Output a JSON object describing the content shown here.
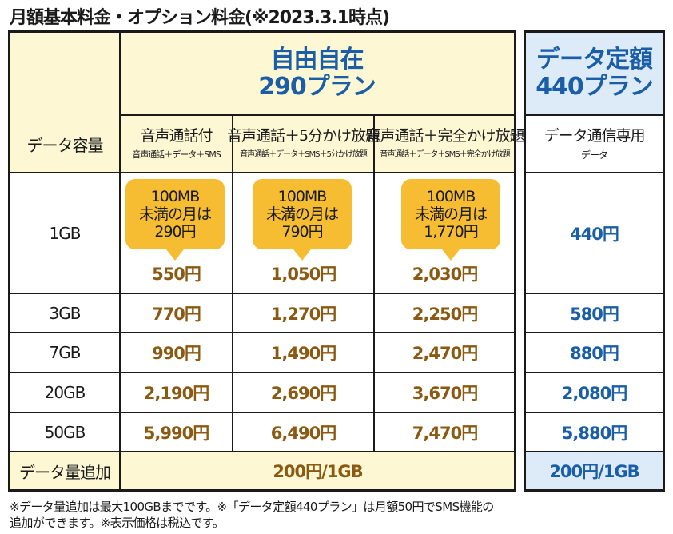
{
  "title": "月額基本料金・オプション料金(※2023.3.1時点)",
  "plans": {
    "jiyu": {
      "line1": "自由自在",
      "line2": "290プラン"
    },
    "data": {
      "line1": "データ定額",
      "line2": "440プラン"
    }
  },
  "header": {
    "data_capacity": "データ容量",
    "columns": [
      {
        "main": "音声通話付",
        "sub": "音声通話＋データ＋SMS"
      },
      {
        "main": "音声通話＋5分かけ放題",
        "sub": "音声通話＋データ＋SMS＋5分かけ放題"
      },
      {
        "main": "音声通話＋完全かけ放題",
        "sub": "音声通話＋データ＋SMS＋完全かけ放題"
      },
      {
        "main": "データ通信専用",
        "sub": "データ"
      }
    ]
  },
  "bubbles": [
    {
      "l1": "100MB",
      "l2": "未満の月は",
      "l3": "290円"
    },
    {
      "l1": "100MB",
      "l2": "未満の月は",
      "l3": "790円"
    },
    {
      "l1": "100MB",
      "l2": "未満の月は",
      "l3": "1,770円"
    }
  ],
  "rows": [
    {
      "label": "1GB",
      "prices": [
        "550円",
        "1,050円",
        "2,030円"
      ],
      "data_price": "440円"
    },
    {
      "label": "3GB",
      "prices": [
        "770円",
        "1,270円",
        "2,250円"
      ],
      "data_price": "580円"
    },
    {
      "label": "7GB",
      "prices": [
        "990円",
        "1,490円",
        "2,470円"
      ],
      "data_price": "880円"
    },
    {
      "label": "20GB",
      "prices": [
        "2,190円",
        "2,690円",
        "3,670円"
      ],
      "data_price": "2,080円"
    },
    {
      "label": "50GB",
      "prices": [
        "5,990円",
        "6,490円",
        "7,470円"
      ],
      "data_price": "5,880円"
    }
  ],
  "addon": {
    "label": "データ量追加",
    "price": "200円/1GB",
    "data_price": "200円/1GB"
  },
  "footnote": {
    "line1": "※データ量追加は最大100GBまでです。※「データ定額440プラン」は月額50円でSMS機能の",
    "line2": "追加ができます。※表示価格は税込です。"
  },
  "colors": {
    "cream": "#fdf7d3",
    "light_blue": "#dcebf7",
    "brown_price": "#8b5a12",
    "blue_price": "#1a5ea8",
    "bubble": "#f6bd33"
  }
}
